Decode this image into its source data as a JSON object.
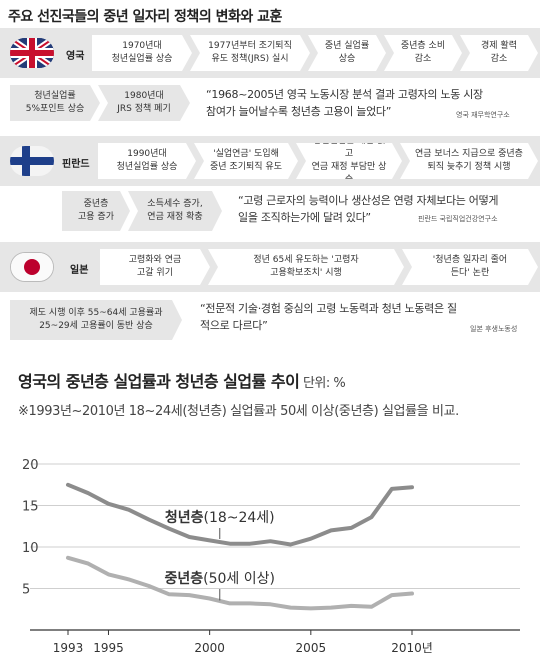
{
  "title": "주요 선진국들의 중년 일자리 정책의 변화와 교훈",
  "uk": {
    "name": "영국",
    "flag_icon": "uk-flag-icon",
    "timeline": [
      "1970년대\n청년실업률 상승",
      "1977년부터 조기퇴직\n유도 정책(JRS) 실시",
      "중년 실업률\n상승",
      "중년층 소비\n감소",
      "경제 활력\n감소"
    ],
    "timeline2": [
      "청년실업률\n5%포인트 상승",
      "1980년대\nJRS 정책 폐기"
    ],
    "quote": "“1968~2005년 영국 노동시장 분석 결과 고령자의 노동 시장\n참여가 늘어날수록 청년층 고용이 늘었다”",
    "source": "영국 재무학연구소"
  },
  "finland": {
    "name": "핀란드",
    "flag_icon": "finland-flag-icon",
    "timeline": [
      "1990년대\n청년실업률 상승",
      "'실업연금' 도입해\n중년 조기퇴직 유도",
      "청년실업률 개선 없고\n연금 재정 부담만 상승",
      "연금 보너스 지급으로 중년층\n퇴직 늦추기 정책 시행"
    ],
    "timeline2": [
      "중년층\n고용 증가",
      "소득세수 증가,\n연금 재정 확충"
    ],
    "quote": "“고령 근로자의 능력이나 생산성은 연령 자체보다는 어떻게\n일을 조직하는가에 달려 있다”",
    "source": "핀란드 국립직업건강연구소"
  },
  "japan": {
    "name": "일본",
    "flag_icon": "japan-flag-icon",
    "timeline": [
      "고령화와 연금\n고갈 위기",
      "정년 65세 유도하는 '고령자\n고용확보조치' 시행",
      "'청년층 일자리 줄어\n든다' 논란"
    ],
    "timeline2": [
      "제도 시행 이후 55~64세 고용률과\n25~29세 고용률이 동반 상승"
    ],
    "quote": "“전문적 기술·경험 중심의 고령 노동력과 청년 노동력은 질\n적으로 다르다”",
    "source": "일본 후생노동성"
  },
  "chart_header": {
    "title": "영국의 중년층 실업률과 청년층 실업률 추이",
    "unit": " 단위: %",
    "note": "※1993년~2010년 18~24세(청년층) 실업률과 50세 이상(중년층) 실업률을 비교."
  },
  "chart_data": {
    "type": "line",
    "x": [
      1993,
      1994,
      1995,
      1996,
      1997,
      1998,
      1999,
      2000,
      2001,
      2002,
      2003,
      2004,
      2005,
      2006,
      2007,
      2008,
      2009,
      2010
    ],
    "series": [
      {
        "name": "청년층(18~24세)",
        "color": "#8c8c8c",
        "values": [
          17.5,
          16.5,
          15.2,
          14.5,
          13.3,
          12.2,
          11.2,
          10.8,
          10.4,
          10.4,
          10.7,
          10.3,
          11.0,
          12.0,
          12.3,
          13.6,
          17.0,
          17.2
        ]
      },
      {
        "name": "중년층(50세 이상)",
        "color": "#b0b0b0",
        "values": [
          8.7,
          8.0,
          6.7,
          6.1,
          5.3,
          4.3,
          4.2,
          3.8,
          3.2,
          3.2,
          3.1,
          2.7,
          2.6,
          2.7,
          2.9,
          2.8,
          4.2,
          4.4
        ]
      }
    ],
    "series_labels": [
      "청년층(18~24세)",
      "중년층(50세 이상)"
    ],
    "ylim": [
      0,
      20
    ],
    "yticks": [
      0,
      5,
      10,
      15,
      20
    ],
    "ytick_labels": [
      "",
      "5",
      "10",
      "15",
      "20"
    ],
    "xticks": [
      1993,
      1995,
      2000,
      2005,
      2010
    ],
    "xtick_labels": [
      "1993",
      "1995",
      "2000",
      "2005",
      "2010년"
    ],
    "grid": true
  }
}
